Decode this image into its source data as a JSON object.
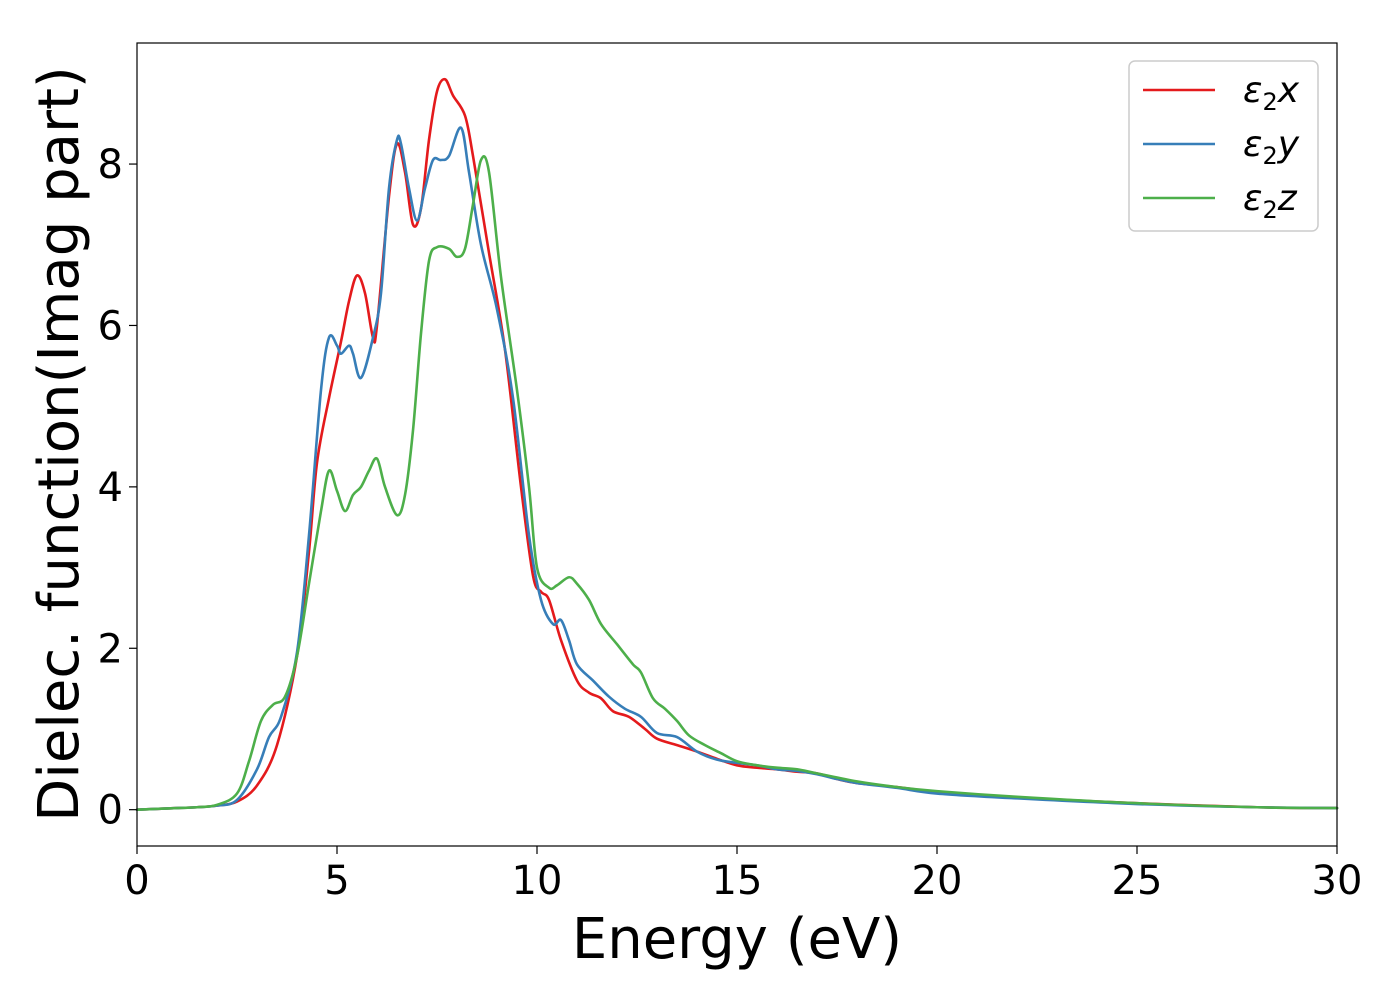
{
  "chart_data": {
    "type": "line",
    "xlabel": "Energy (eV)",
    "ylabel": "Dielec. function(Imag part)",
    "xlim": [
      0,
      30
    ],
    "ylim": [
      -0.45,
      9.5
    ],
    "xticks": [
      0,
      5,
      10,
      15,
      20,
      25,
      30
    ],
    "yticks": [
      0,
      2,
      4,
      6,
      8
    ],
    "grid": false,
    "legend_position": "top-right",
    "series": [
      {
        "name": "ε2x",
        "legend": {
          "base": "ε",
          "sub": "2",
          "tail": "x"
        },
        "color": "#e41a1c",
        "points": [
          [
            0,
            0
          ],
          [
            1,
            0.02
          ],
          [
            1.5,
            0.03
          ],
          [
            2,
            0.05
          ],
          [
            2.5,
            0.1
          ],
          [
            3,
            0.3
          ],
          [
            3.5,
            0.8
          ],
          [
            4,
            1.9
          ],
          [
            4.3,
            3.2
          ],
          [
            4.5,
            4.3
          ],
          [
            4.8,
            5.1
          ],
          [
            5.1,
            5.8
          ],
          [
            5.3,
            6.3
          ],
          [
            5.5,
            6.62
          ],
          [
            5.7,
            6.4
          ],
          [
            5.9,
            5.85
          ],
          [
            6,
            6.0
          ],
          [
            6.3,
            7.6
          ],
          [
            6.5,
            8.25
          ],
          [
            6.7,
            7.9
          ],
          [
            6.9,
            7.25
          ],
          [
            7.1,
            7.45
          ],
          [
            7.3,
            8.3
          ],
          [
            7.5,
            8.9
          ],
          [
            7.7,
            9.05
          ],
          [
            7.9,
            8.85
          ],
          [
            8.2,
            8.6
          ],
          [
            8.4,
            8.1
          ],
          [
            8.8,
            6.9
          ],
          [
            9.2,
            5.7
          ],
          [
            9.6,
            4.0
          ],
          [
            9.9,
            2.9
          ],
          [
            10.1,
            2.7
          ],
          [
            10.3,
            2.6
          ],
          [
            10.6,
            2.1
          ],
          [
            11,
            1.6
          ],
          [
            11.3,
            1.45
          ],
          [
            11.6,
            1.38
          ],
          [
            11.9,
            1.22
          ],
          [
            12.3,
            1.15
          ],
          [
            12.7,
            1.0
          ],
          [
            13,
            0.88
          ],
          [
            13.5,
            0.8
          ],
          [
            14,
            0.72
          ],
          [
            14.5,
            0.63
          ],
          [
            15,
            0.55
          ],
          [
            15.5,
            0.52
          ],
          [
            16,
            0.5
          ],
          [
            16.5,
            0.47
          ],
          [
            17,
            0.45
          ],
          [
            17.5,
            0.38
          ],
          [
            18,
            0.33
          ],
          [
            19,
            0.28
          ],
          [
            20,
            0.22
          ],
          [
            22,
            0.15
          ],
          [
            25,
            0.08
          ],
          [
            28,
            0.03
          ],
          [
            30,
            0.02
          ]
        ]
      },
      {
        "name": "ε2y",
        "legend": {
          "base": "ε",
          "sub": "2",
          "tail": "y"
        },
        "color": "#377eb8",
        "points": [
          [
            0,
            0
          ],
          [
            1,
            0.02
          ],
          [
            1.5,
            0.03
          ],
          [
            2,
            0.05
          ],
          [
            2.5,
            0.12
          ],
          [
            3,
            0.5
          ],
          [
            3.3,
            0.9
          ],
          [
            3.6,
            1.15
          ],
          [
            4,
            1.95
          ],
          [
            4.3,
            3.4
          ],
          [
            4.6,
            5.2
          ],
          [
            4.8,
            5.85
          ],
          [
            5,
            5.75
          ],
          [
            5.1,
            5.65
          ],
          [
            5.3,
            5.75
          ],
          [
            5.4,
            5.65
          ],
          [
            5.6,
            5.35
          ],
          [
            5.9,
            5.85
          ],
          [
            6.1,
            6.4
          ],
          [
            6.3,
            7.7
          ],
          [
            6.5,
            8.3
          ],
          [
            6.6,
            8.25
          ],
          [
            6.8,
            7.7
          ],
          [
            7,
            7.3
          ],
          [
            7.2,
            7.7
          ],
          [
            7.4,
            8.05
          ],
          [
            7.6,
            8.05
          ],
          [
            7.8,
            8.1
          ],
          [
            8.1,
            8.45
          ],
          [
            8.3,
            7.9
          ],
          [
            8.6,
            7.0
          ],
          [
            9,
            6.2
          ],
          [
            9.4,
            5.1
          ],
          [
            9.8,
            3.4
          ],
          [
            10.1,
            2.6
          ],
          [
            10.4,
            2.3
          ],
          [
            10.6,
            2.35
          ],
          [
            10.8,
            2.1
          ],
          [
            11,
            1.8
          ],
          [
            11.4,
            1.6
          ],
          [
            11.8,
            1.4
          ],
          [
            12.2,
            1.25
          ],
          [
            12.6,
            1.15
          ],
          [
            13,
            0.95
          ],
          [
            13.5,
            0.9
          ],
          [
            14,
            0.72
          ],
          [
            14.5,
            0.62
          ],
          [
            15,
            0.58
          ],
          [
            15.5,
            0.55
          ],
          [
            16,
            0.5
          ],
          [
            16.5,
            0.48
          ],
          [
            17,
            0.44
          ],
          [
            17.5,
            0.38
          ],
          [
            18,
            0.33
          ],
          [
            19,
            0.27
          ],
          [
            20,
            0.2
          ],
          [
            22,
            0.14
          ],
          [
            25,
            0.07
          ],
          [
            28,
            0.03
          ],
          [
            30,
            0.02
          ]
        ]
      },
      {
        "name": "ε2z",
        "legend": {
          "base": "ε",
          "sub": "2",
          "tail": "z"
        },
        "color": "#4daf4a",
        "points": [
          [
            0,
            0
          ],
          [
            1,
            0.02
          ],
          [
            1.5,
            0.03
          ],
          [
            2,
            0.06
          ],
          [
            2.5,
            0.2
          ],
          [
            2.8,
            0.6
          ],
          [
            3.1,
            1.1
          ],
          [
            3.4,
            1.3
          ],
          [
            3.7,
            1.4
          ],
          [
            4,
            1.9
          ],
          [
            4.3,
            2.8
          ],
          [
            4.6,
            3.7
          ],
          [
            4.8,
            4.2
          ],
          [
            5,
            3.95
          ],
          [
            5.2,
            3.7
          ],
          [
            5.4,
            3.9
          ],
          [
            5.6,
            4.0
          ],
          [
            5.8,
            4.2
          ],
          [
            6,
            4.35
          ],
          [
            6.2,
            4.0
          ],
          [
            6.5,
            3.65
          ],
          [
            6.7,
            3.9
          ],
          [
            6.9,
            4.7
          ],
          [
            7.1,
            5.9
          ],
          [
            7.3,
            6.8
          ],
          [
            7.5,
            6.97
          ],
          [
            7.8,
            6.95
          ],
          [
            8,
            6.85
          ],
          [
            8.2,
            6.95
          ],
          [
            8.4,
            7.5
          ],
          [
            8.6,
            8.05
          ],
          [
            8.8,
            7.9
          ],
          [
            9.1,
            6.6
          ],
          [
            9.5,
            5.2
          ],
          [
            9.8,
            4.0
          ],
          [
            10,
            3.0
          ],
          [
            10.3,
            2.75
          ],
          [
            10.5,
            2.78
          ],
          [
            10.8,
            2.88
          ],
          [
            11,
            2.8
          ],
          [
            11.3,
            2.6
          ],
          [
            11.6,
            2.3
          ],
          [
            12,
            2.05
          ],
          [
            12.4,
            1.8
          ],
          [
            12.6,
            1.7
          ],
          [
            12.9,
            1.38
          ],
          [
            13.2,
            1.25
          ],
          [
            13.5,
            1.1
          ],
          [
            13.8,
            0.92
          ],
          [
            14.2,
            0.8
          ],
          [
            14.6,
            0.7
          ],
          [
            15,
            0.6
          ],
          [
            15.5,
            0.55
          ],
          [
            16,
            0.52
          ],
          [
            16.5,
            0.5
          ],
          [
            17,
            0.45
          ],
          [
            18,
            0.35
          ],
          [
            19,
            0.28
          ],
          [
            20,
            0.23
          ],
          [
            22,
            0.16
          ],
          [
            25,
            0.08
          ],
          [
            28,
            0.03
          ],
          [
            30,
            0.02
          ]
        ]
      }
    ]
  }
}
